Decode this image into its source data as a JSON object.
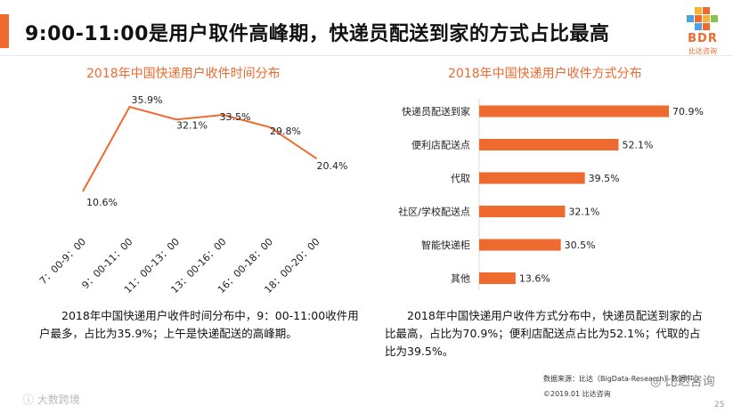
{
  "page": {
    "title": "9:00-11:00是用户取件高峰期，快递员配送到家的方式占比最高",
    "logo_text": "BDR",
    "logo_sub": "比达咨询",
    "page_number": "25",
    "source_line1": "数据来源：比达（BigData-Research）数据中心",
    "source_line2": "©2019.01  比达咨询",
    "watermark_left": "大数跨境",
    "watermark_right": "比达咨询",
    "accent_color": "#ee6a2e"
  },
  "chart_data": [
    {
      "type": "line",
      "title": "2018年中国快递用户收件时间分布",
      "categories": [
        "7：00-9：00",
        "9：00-11：00",
        "11：00-13：00",
        "13：00-16：00",
        "16：00-18：00",
        "18：00-20：00"
      ],
      "values": [
        10.6,
        35.9,
        32.1,
        33.5,
        29.8,
        20.4
      ],
      "labels": [
        "10.6%",
        "35.9%",
        "32.1%",
        "33.5%",
        "29.8%",
        "20.4%"
      ],
      "ylim": [
        0,
        40
      ],
      "xlabel": "",
      "ylabel": "",
      "grid": false,
      "color": "#ee6a2e",
      "caption": "2018年中国快递用户收件时间分布中，9：00-11:00收件用户最多，占比为35.9%；上午是快递配送的高峰期。"
    },
    {
      "type": "bar",
      "orientation": "horizontal",
      "title": "2018年中国快递用户收件方式分布",
      "categories": [
        "快递员配送到家",
        "便利店配送点",
        "代取",
        "社区/学校配送点",
        "智能快递柜",
        "其他"
      ],
      "values": [
        70.9,
        52.1,
        39.5,
        32.1,
        30.5,
        13.6
      ],
      "labels": [
        "70.9%",
        "52.1%",
        "39.5%",
        "32.1%",
        "30.5%",
        "13.6%"
      ],
      "xlim": [
        0,
        70.9
      ],
      "grid": false,
      "color": "#ee6a2e",
      "caption": "2018年中国快递用户收件方式分布中，快递员配送到家的占比最高，占比为70.9%；便利店配送点占比为52.1%；代取的占比为39.5%。"
    }
  ]
}
